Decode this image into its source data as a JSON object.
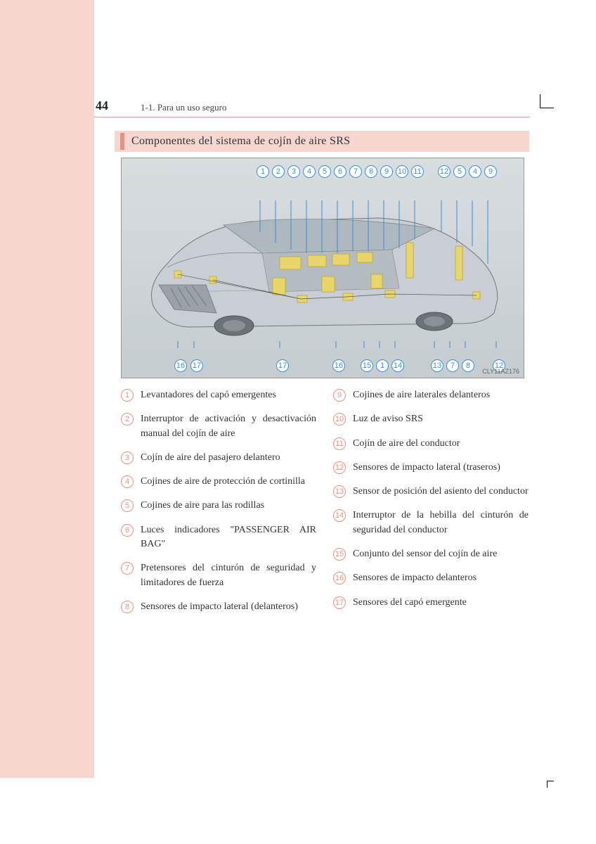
{
  "page_number": "44",
  "section_header": "1-1. Para un uso seguro",
  "title": "Componentes del sistema de cojín de aire SRS",
  "diagram": {
    "code": "CLY11AZ176",
    "top_callouts": [
      "1",
      "2",
      "3",
      "4",
      "5",
      "6",
      "7",
      "8",
      "9",
      "10",
      "11",
      "12",
      "5",
      "4",
      "9"
    ],
    "bottom_callouts": [
      "16",
      "17",
      "17",
      "16",
      "15",
      "1",
      "14",
      "13",
      "7",
      "8",
      "12"
    ],
    "accent_color": "#3b8fd6",
    "car_body_color": "#b8bec3",
    "component_color": "#e8d66b",
    "background_gradient_top": "#d8dde0",
    "background_gradient_bottom": "#c5ccd0"
  },
  "legend_accent": "#e89080",
  "legend_left": [
    {
      "n": "1",
      "t": "Levantadores del capó emergentes"
    },
    {
      "n": "2",
      "t": "Interruptor de activación y desactivación manual del cojín de aire"
    },
    {
      "n": "3",
      "t": "Cojín de aire del pasajero delantero"
    },
    {
      "n": "4",
      "t": "Cojines de aire de protección de cortinilla"
    },
    {
      "n": "5",
      "t": "Cojines de aire para las rodillas"
    },
    {
      "n": "6",
      "t": "Luces indicadores \"PASSENGER AIR BAG\""
    },
    {
      "n": "7",
      "t": "Pretensores del cinturón de seguridad y limitadores de fuerza"
    },
    {
      "n": "8",
      "t": "Sensores de impacto lateral (delanteros)"
    }
  ],
  "legend_right": [
    {
      "n": "9",
      "t": "Cojines de aire laterales delanteros"
    },
    {
      "n": "10",
      "t": "Luz de aviso SRS"
    },
    {
      "n": "11",
      "t": "Cojín de aire del conductor"
    },
    {
      "n": "12",
      "t": "Sensores de impacto lateral (traseros)"
    },
    {
      "n": "13",
      "t": "Sensor de posición del asiento del conductor"
    },
    {
      "n": "14",
      "t": "Interruptor de la hebilla del cinturón de seguridad del conductor"
    },
    {
      "n": "15",
      "t": "Conjunto del sensor del cojín de aire"
    },
    {
      "n": "16",
      "t": "Sensores de impacto delanteros"
    },
    {
      "n": "17",
      "t": "Sensores del capó emergente"
    }
  ]
}
